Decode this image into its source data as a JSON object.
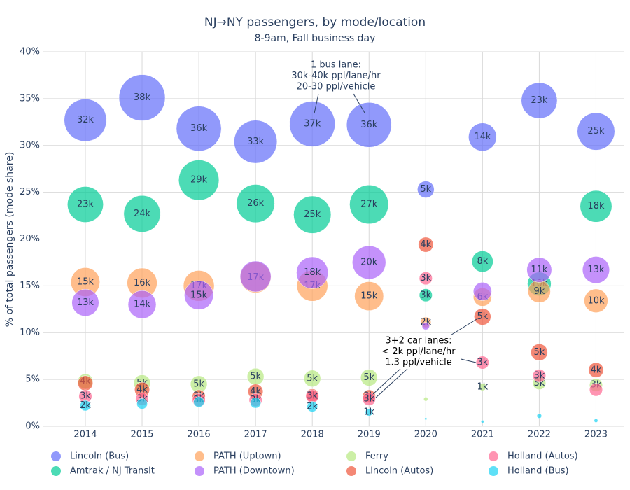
{
  "chart_data": {
    "type": "bubble",
    "title": "NJ→NY passengers, by mode/location",
    "subtitle": "8-9am, Fall business day",
    "y_label": "% of total passengers (mode share)",
    "x": [
      2014,
      2015,
      2016,
      2017,
      2018,
      2019,
      2020,
      2021,
      2022,
      2023
    ],
    "xlim": [
      2013.26,
      2023.5
    ],
    "xticks": [
      2014,
      2015,
      2016,
      2017,
      2018,
      2019,
      2020,
      2021,
      2022,
      2023
    ],
    "ylim": [
      0,
      40
    ],
    "yticks": [
      {
        "value": 0,
        "label": "0%"
      },
      {
        "value": 5,
        "label": "5%"
      },
      {
        "value": 10,
        "label": "10%"
      },
      {
        "value": 15,
        "label": "15%"
      },
      {
        "value": 20,
        "label": "20%"
      },
      {
        "value": 25,
        "label": "25%"
      },
      {
        "value": 30,
        "label": "30%"
      },
      {
        "value": 35,
        "label": "35%"
      },
      {
        "value": 40,
        "label": "40%"
      }
    ],
    "grid": true,
    "legend": "bottom",
    "series": [
      {
        "name": "Lincoln (Bus)",
        "color": "#636efa",
        "values": [
          32.7,
          35.1,
          31.8,
          30.4,
          32.3,
          32.2,
          25.3,
          30.9,
          34.8,
          31.5
        ],
        "sizes": [
          32000,
          38000,
          36000,
          33000,
          37000,
          36000,
          5000,
          14000,
          23000,
          25000
        ],
        "size_labels": [
          "32k",
          "38k",
          "36k",
          "33k",
          "37k",
          "36k",
          "5k",
          "14k",
          "23k",
          "25k"
        ]
      },
      {
        "name": "Amtrak / NJ Transit",
        "color": "#00cc96",
        "values": [
          23.7,
          22.7,
          26.3,
          23.8,
          22.6,
          23.7,
          14.0,
          17.6,
          15.2,
          23.5
        ],
        "sizes": [
          23000,
          24000,
          29000,
          26000,
          25000,
          27000,
          3000,
          8000,
          10000,
          18000
        ],
        "size_labels": [
          "23k",
          "24k",
          "29k",
          "26k",
          "25k",
          "27k",
          "3k",
          "8k",
          "10k",
          "18k"
        ]
      },
      {
        "name": "PATH (Uptown)",
        "color": "#ffa15a",
        "values": [
          15.4,
          15.3,
          15.0,
          15.9,
          15.0,
          13.9,
          11.1,
          13.8,
          14.4,
          13.4
        ],
        "sizes": [
          15000,
          16000,
          17000,
          17000,
          17000,
          15000,
          2000,
          6000,
          9000,
          10000
        ],
        "size_labels": [
          "15k",
          "16k",
          "17k",
          "17k",
          "17k",
          "15k",
          "2k",
          "6k",
          "9k",
          "10k"
        ]
      },
      {
        "name": "PATH (Downtown)",
        "color": "#ab63fa",
        "values": [
          13.2,
          13.0,
          14.0,
          16.0,
          16.4,
          17.5,
          10.7,
          14.4,
          16.7,
          16.7
        ],
        "sizes": [
          13000,
          14000,
          15000,
          17000,
          18000,
          20000,
          1000,
          6000,
          11000,
          13000
        ],
        "size_labels": [
          "13k",
          "14k",
          "15k",
          null,
          "18k",
          "20k",
          null,
          null,
          "11k",
          "13k"
        ]
      },
      {
        "name": "Ferry",
        "color": "#b6e880",
        "values": [
          4.8,
          4.6,
          4.5,
          5.3,
          5.1,
          5.2,
          2.9,
          4.2,
          4.6,
          4.4
        ],
        "sizes": [
          4000,
          5000,
          5000,
          5000,
          5000,
          5000,
          300,
          1000,
          3000,
          3000
        ],
        "size_labels": [
          "4k",
          "5k",
          "5k",
          "5k",
          "5k",
          "5k",
          null,
          "1k",
          "3k",
          "3k"
        ]
      },
      {
        "name": "Lincoln (Autos)",
        "color": "#ef553b",
        "values": [
          4.6,
          3.9,
          3.2,
          3.7,
          3.3,
          3.2,
          19.4,
          11.7,
          7.9,
          6.0
        ],
        "sizes": [
          4000,
          4000,
          3000,
          4000,
          3000,
          3000,
          4000,
          5000,
          5000,
          4000
        ],
        "size_labels": [
          null,
          "4k",
          "3k",
          "4k",
          "3k",
          "3k",
          "4k",
          "5k",
          "5k",
          "4k"
        ]
      },
      {
        "name": "Holland (Autos)",
        "color": "#ff6692",
        "values": [
          3.2,
          2.9,
          2.8,
          2.8,
          3.2,
          2.9,
          15.8,
          6.8,
          5.4,
          3.9
        ],
        "sizes": [
          3000,
          3000,
          3000,
          3000,
          3000,
          3000,
          3000,
          3000,
          3000,
          3000
        ],
        "size_labels": [
          "3k",
          "3k",
          "3k",
          "3k",
          "3k",
          "3k",
          "3k",
          "3k",
          "3k",
          null
        ]
      },
      {
        "name": "Holland (Bus)",
        "color": "#19d3f3",
        "values": [
          2.2,
          2.4,
          2.6,
          2.5,
          2.1,
          1.5,
          0.8,
          0.5,
          1.1,
          0.6
        ],
        "sizes": [
          2000,
          2000,
          2000,
          2000,
          2000,
          1000,
          100,
          150,
          400,
          250
        ],
        "size_labels": [
          "2k",
          null,
          null,
          null,
          "2k",
          "1k",
          null,
          null,
          null,
          null
        ]
      }
    ],
    "annotations": [
      {
        "text": [
          "1 bus lane:",
          "30k-40k ppl/lane/hr",
          "20-30 ppl/vehicle"
        ]
      },
      {
        "text": [
          "3+2 car lanes:",
          "< 2k ppl/lane/hr",
          "1.3 ppl/vehicle"
        ]
      }
    ]
  }
}
